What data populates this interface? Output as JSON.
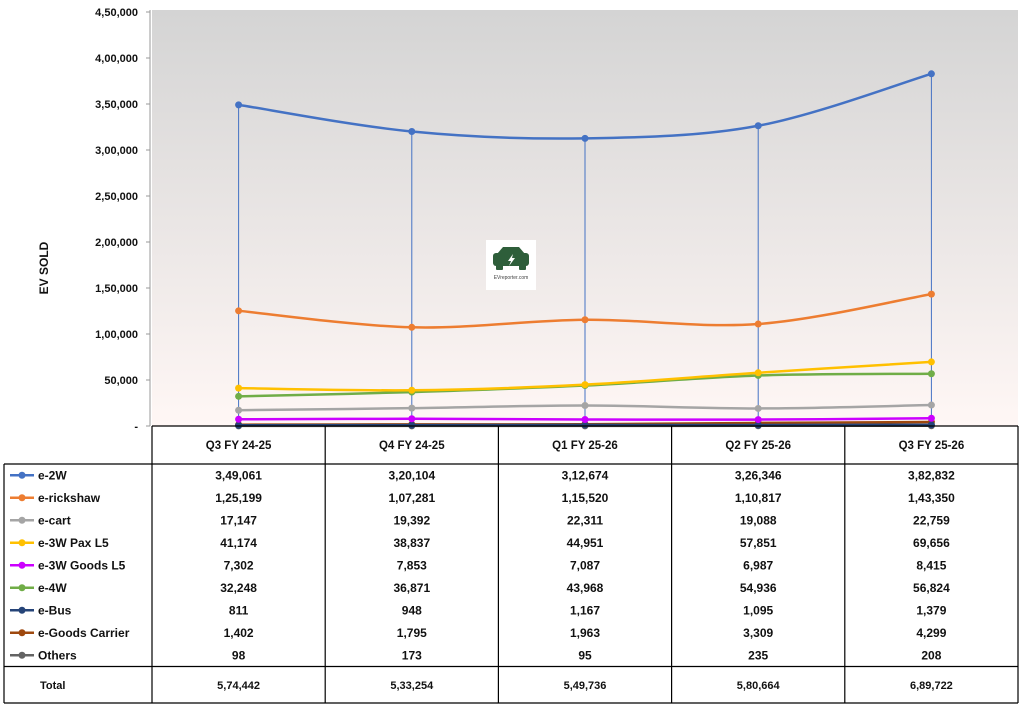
{
  "chart_data": {
    "type": "line",
    "title": "",
    "xlabel": "",
    "ylabel": "EV SOLD",
    "ylim": [
      0,
      450000
    ],
    "yticks": [
      "-",
      "50,000",
      "1,00,000",
      "1,50,000",
      "2,00,000",
      "2,50,000",
      "3,00,000",
      "3,50,000",
      "4,00,000",
      "4,50,000"
    ],
    "categories": [
      "Q3 FY 24-25",
      "Q4 FY 24-25",
      "Q1 FY 25-26",
      "Q2 FY 25-26",
      "Q3 FY 25-26"
    ],
    "series": [
      {
        "name": "e-2W",
        "color": "#4472C4",
        "values": [
          349061,
          320104,
          312674,
          326346,
          382832
        ],
        "labels": [
          "3,49,061",
          "3,20,104",
          "3,12,674",
          "3,26,346",
          "3,82,832"
        ]
      },
      {
        "name": "e-rickshaw",
        "color": "#ED7D31",
        "values": [
          125199,
          107281,
          115520,
          110817,
          143350
        ],
        "labels": [
          "1,25,199",
          "1,07,281",
          "1,15,520",
          "1,10,817",
          "1,43,350"
        ]
      },
      {
        "name": "e-cart",
        "color": "#A5A5A5",
        "values": [
          17147,
          19392,
          22311,
          19088,
          22759
        ],
        "labels": [
          "17,147",
          "19,392",
          "22,311",
          "19,088",
          "22,759"
        ]
      },
      {
        "name": "e-3W Pax L5",
        "color": "#FFC000",
        "values": [
          41174,
          38837,
          44951,
          57851,
          69656
        ],
        "labels": [
          "41,174",
          "38,837",
          "44,951",
          "57,851",
          "69,656"
        ]
      },
      {
        "name": "e-3W Goods L5",
        "color": "#CC00FF",
        "values": [
          7302,
          7853,
          7087,
          6987,
          8415
        ],
        "labels": [
          "7,302",
          "7,853",
          "7,087",
          "6,987",
          "8,415"
        ]
      },
      {
        "name": "e-4W",
        "color": "#70AD47",
        "values": [
          32248,
          36871,
          43968,
          54936,
          56824
        ],
        "labels": [
          "32,248",
          "36,871",
          "43,968",
          "54,936",
          "56,824"
        ]
      },
      {
        "name": "e-Bus",
        "color": "#264478",
        "values": [
          811,
          948,
          1167,
          1095,
          1379
        ],
        "labels": [
          "811",
          "948",
          "1,167",
          "1,095",
          "1,379"
        ]
      },
      {
        "name": "e-Goods Carrier",
        "color": "#9E480E",
        "values": [
          1402,
          1795,
          1963,
          3309,
          4299
        ],
        "labels": [
          "1,402",
          "1,795",
          "1,963",
          "3,309",
          "4,299"
        ]
      },
      {
        "name": "Others",
        "color": "#636363",
        "values": [
          98,
          173,
          95,
          235,
          208
        ],
        "labels": [
          "98",
          "173",
          "95",
          "235",
          "208"
        ]
      }
    ],
    "drop_lines_series": "e-2W",
    "table": {
      "total_label": "Total",
      "totals": [
        "5,74,442",
        "5,33,254",
        "5,49,736",
        "5,80,664",
        "6,89,722"
      ]
    },
    "grid": false,
    "legend": "data-table",
    "background_gradient": [
      "#D4D4D4",
      "#FFF7F5"
    ]
  },
  "watermark": {
    "icon": "ev-car-logo-icon",
    "text": "EVreporter.com"
  }
}
